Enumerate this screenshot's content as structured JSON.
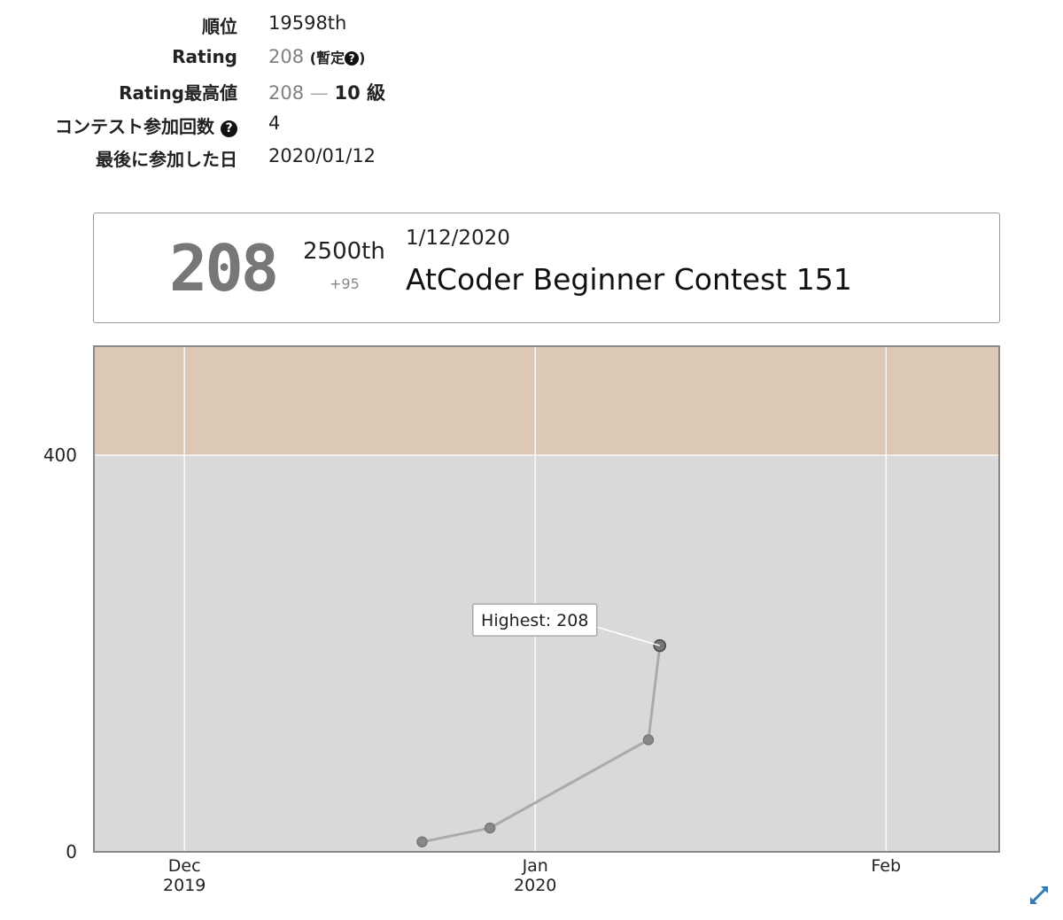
{
  "profile": [
    {
      "label": "順位",
      "value": "19598th"
    },
    {
      "label": "Rating",
      "value": "208",
      "note": "(暫定",
      "note_icon": "question-circle-icon",
      "note_end": ")"
    },
    {
      "label": "Rating最高値",
      "value": "208",
      "sep": "—",
      "grade": "10 級"
    },
    {
      "label": "コンテスト参加回数",
      "icon": "question-circle-icon",
      "value": "4"
    },
    {
      "label": "最後に参加した日",
      "value": "2020/01/12"
    }
  ],
  "status": {
    "rating": "208",
    "rank": "2500th",
    "diff": "+95",
    "date": "1/12/2020",
    "contest": "AtCoder Beginner Contest 151"
  },
  "colors": {
    "band_gray": "#d9d9d9",
    "band_brown": "#dcc8b4",
    "line": "#aaaaaa",
    "point": "#888888",
    "highest_point": "#777777",
    "accent_blue": "#337ab7"
  },
  "chart_data": {
    "type": "line",
    "x_tick_labels": [
      {
        "date": "2019-12-01",
        "label1": "Dec",
        "label2": "2019"
      },
      {
        "date": "2020-01-01",
        "label1": "Jan",
        "label2": "2020"
      },
      {
        "date": "2020-02-01",
        "label1": "Feb",
        "label2": ""
      }
    ],
    "y_ticks": [
      0,
      400
    ],
    "xlim": [
      "2019-11-23",
      "2020-02-11"
    ],
    "ylim": [
      0,
      510
    ],
    "bands": [
      {
        "from": 0,
        "to": 400,
        "color": "#d9d9d9"
      },
      {
        "from": 400,
        "to": 510,
        "color": "#dcc8b4"
      }
    ],
    "series": [
      {
        "values": [
          {
            "x": "2019-12-22",
            "y": 10
          },
          {
            "x": "2019-12-28",
            "y": 24
          },
          {
            "x": "2020-01-11",
            "y": 113
          },
          {
            "x": "2020-01-12",
            "y": 208
          }
        ]
      }
    ],
    "annotation": {
      "text": "Highest: 208",
      "x": "2020-01-12",
      "y": 208
    },
    "grid": true,
    "legend": "none"
  },
  "icons": {
    "expand": "expand-arrows-icon"
  }
}
